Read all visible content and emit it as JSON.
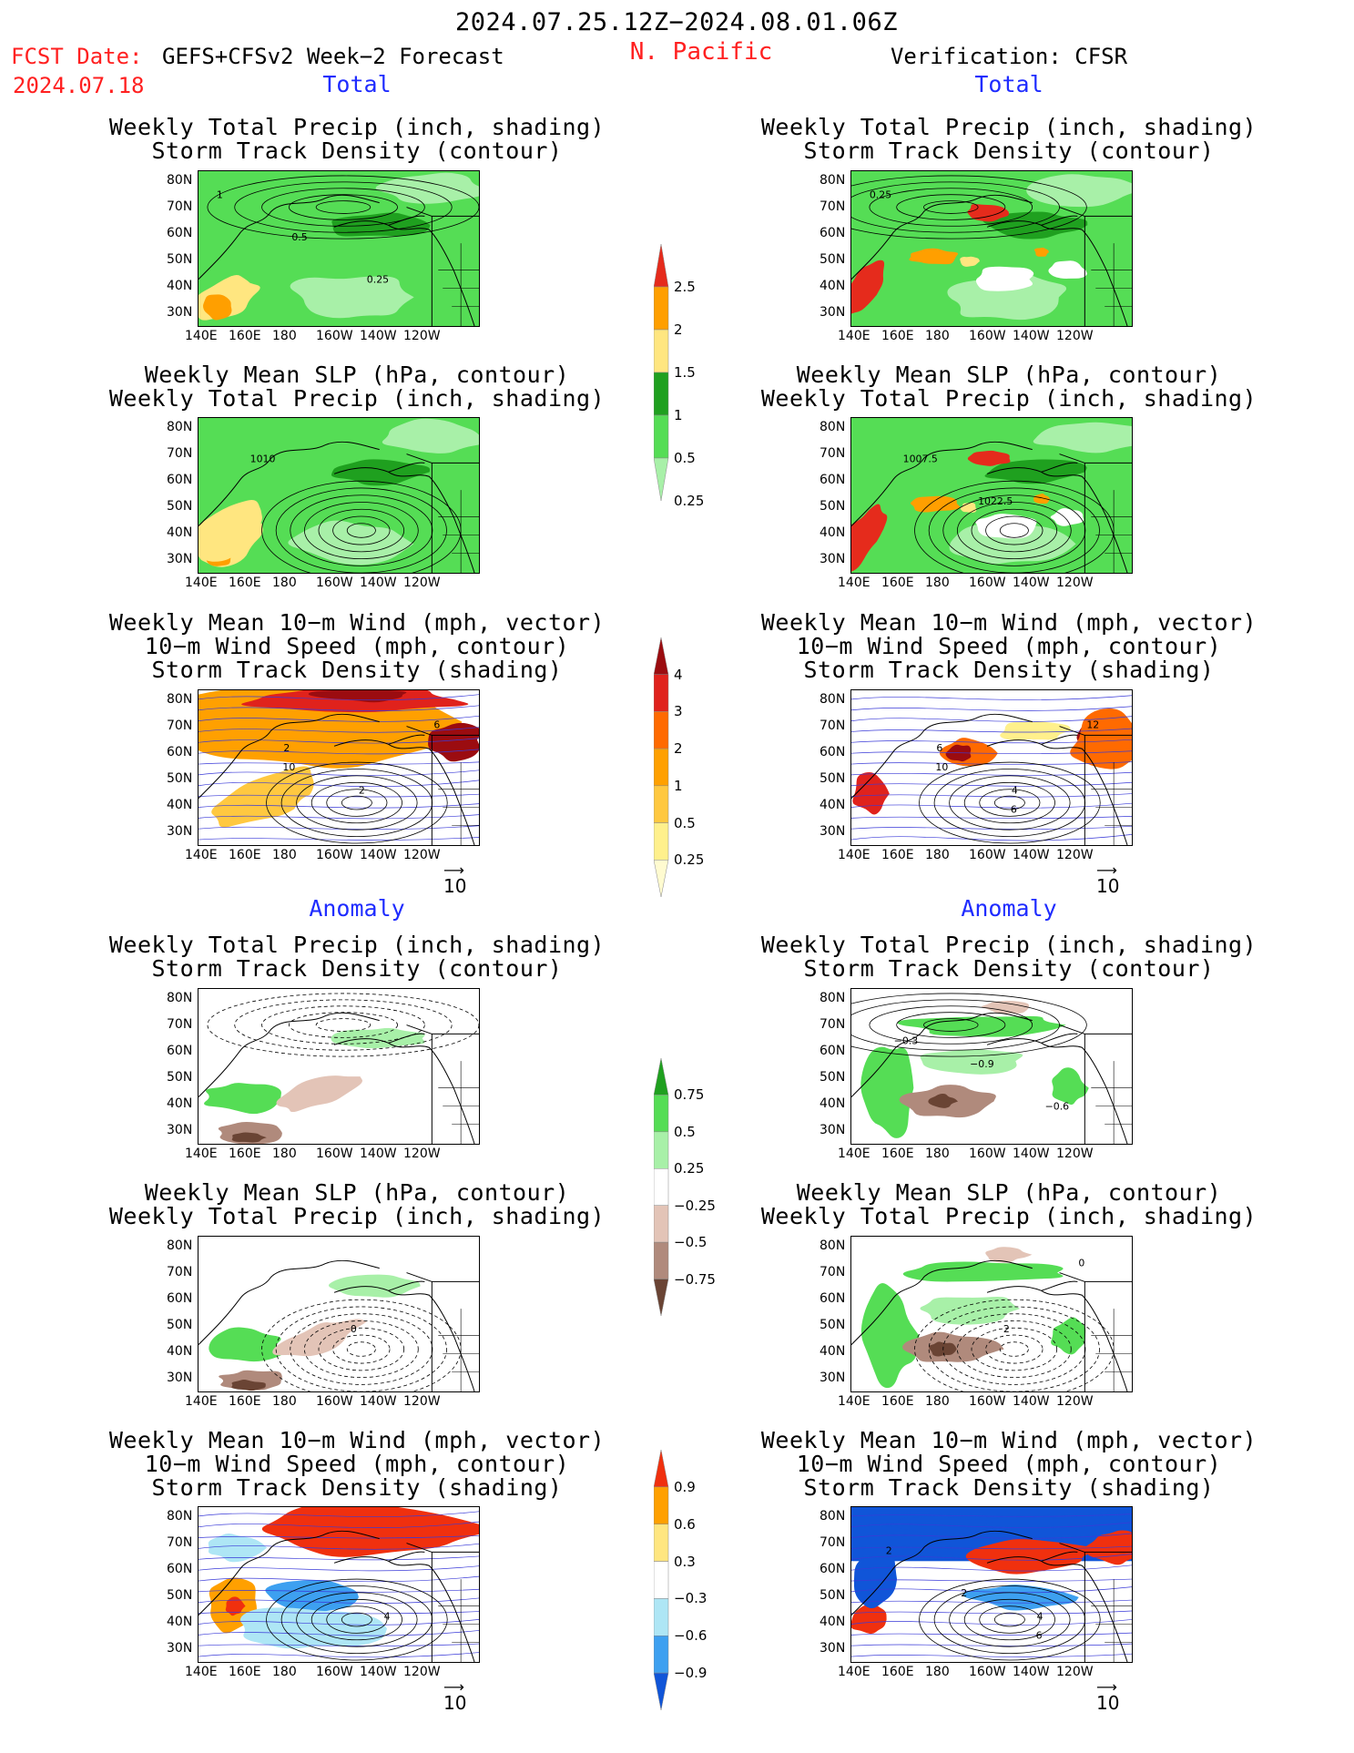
{
  "header": {
    "period": "2024.07.25.12Z−2024.08.01.06Z",
    "fcst_label": "FCST Date:",
    "model": "GEFS+CFSv2 Week−2 Forecast",
    "fcst_date": "2024.07.18",
    "region": "N. Pacific",
    "verification": "Verification: CFSR"
  },
  "sections": {
    "total": "Total",
    "anomaly": "Anomaly"
  },
  "panel_titles": {
    "precip_storm": [
      "Weekly Total Precip (inch, shading)",
      "Storm Track Density (contour)"
    ],
    "slp_precip": [
      "Weekly Mean SLP (hPa, contour)",
      "Weekly Total Precip (inch, shading)"
    ],
    "wind_storm": [
      "Weekly Mean 10−m Wind (mph, vector)",
      "10−m Wind Speed (mph, contour)",
      "Storm Track Density (shading)"
    ]
  },
  "axes": {
    "lat_ticks": [
      "80N",
      "70N",
      "60N",
      "50N",
      "40N",
      "30N"
    ],
    "lon_ticks": [
      "140E",
      "160E",
      "180",
      "160W",
      "140W",
      "120W"
    ]
  },
  "reference_vector": "10",
  "contour_labels": {
    "fcst_precip_storm": [
      "1",
      "0.5",
      "0.25"
    ],
    "verif_precip_storm": [
      "0.25"
    ],
    "fcst_slp": [
      "1010"
    ],
    "verif_slp": [
      "1007.5",
      "1022.5"
    ],
    "fcst_wind": [
      "2",
      "2",
      "6",
      "10"
    ],
    "verif_wind": [
      "6",
      "4",
      "12",
      "10",
      "6"
    ],
    "verif_precip_anom": [
      "−0.9",
      "−0.6",
      "−0.3"
    ],
    "fcst_slp_anom": [
      "0"
    ],
    "verif_slp_anom": [
      "2",
      "0"
    ],
    "fcst_wind_anom": [
      "4"
    ],
    "verif_wind_anom": [
      "4",
      "2",
      "2",
      "6"
    ]
  },
  "colorbars": {
    "precip_total": {
      "labels": [
        "2.5",
        "2",
        "1.5",
        "1",
        "0.5",
        "0.25"
      ],
      "colors": [
        "#e52b1c",
        "#ff9f00",
        "#ffe680",
        "#1fa01f",
        "#55dd55",
        "#a8f0a8"
      ]
    },
    "storm_total": {
      "labels": [
        "4",
        "3",
        "2",
        "1",
        "0.5",
        "0.25"
      ],
      "colors": [
        "#9b0c10",
        "#e0221c",
        "#ff6a00",
        "#ffa000",
        "#ffc840",
        "#fff08c",
        "#fffbd0"
      ]
    },
    "precip_anom": {
      "labels": [
        "0.75",
        "0.5",
        "0.25",
        "−0.25",
        "−0.5",
        "−0.75"
      ],
      "colors": [
        "#1fa01f",
        "#55dd55",
        "#a8f0a8",
        "#ffffff",
        "#e3c4b7",
        "#b08a7c",
        "#6a4434"
      ]
    },
    "storm_anom": {
      "labels": [
        "0.9",
        "0.6",
        "0.3",
        "−0.3",
        "−0.6",
        "−0.9"
      ],
      "colors": [
        "#f0300e",
        "#ffa000",
        "#ffe680",
        "#ffffff",
        "#aee6f5",
        "#3da0f0",
        "#1055d8"
      ]
    }
  },
  "chart_data": [
    {
      "type": "heatmap",
      "panel": "forecast-total-precip-storm",
      "title": [
        "Weekly Total Precip (inch, shading)",
        "Storm Track Density (contour)"
      ],
      "contour_labels": [
        "1",
        "0.5",
        "0.25"
      ]
    },
    {
      "type": "heatmap",
      "panel": "forecast-total-slp-precip",
      "title": [
        "Weekly Mean SLP (hPa, contour)",
        "Weekly Total Precip (inch, shading)"
      ],
      "contour_labels": [
        "1010"
      ]
    },
    {
      "type": "heatmap",
      "panel": "forecast-total-wind-storm",
      "title": [
        "Weekly Mean 10−m Wind (mph, vector)",
        "10−m Wind Speed (mph, contour)",
        "Storm Track Density (shading)"
      ],
      "contour_labels": [
        "2",
        "2",
        "6",
        "10"
      ]
    },
    {
      "type": "heatmap",
      "panel": "verification-total-precip-storm",
      "contour_labels": [
        "0.25"
      ]
    },
    {
      "type": "heatmap",
      "panel": "verification-total-slp-precip",
      "contour_labels": [
        "1007.5",
        "1022.5"
      ]
    },
    {
      "type": "heatmap",
      "panel": "verification-total-wind-storm",
      "contour_labels": [
        "6",
        "4",
        "12",
        "10",
        "6"
      ]
    },
    {
      "type": "heatmap",
      "panel": "forecast-anomaly-precip-storm"
    },
    {
      "type": "heatmap",
      "panel": "forecast-anomaly-slp-precip",
      "contour_labels": [
        "0"
      ]
    },
    {
      "type": "heatmap",
      "panel": "forecast-anomaly-wind-storm",
      "contour_labels": [
        "4"
      ]
    },
    {
      "type": "heatmap",
      "panel": "verification-anomaly-precip-storm",
      "contour_labels": [
        "−0.9",
        "−0.6",
        "−0.3"
      ]
    },
    {
      "type": "heatmap",
      "panel": "verification-anomaly-slp-precip",
      "contour_labels": [
        "2",
        "0"
      ]
    },
    {
      "type": "heatmap",
      "panel": "verification-anomaly-wind-storm",
      "contour_labels": [
        "4",
        "2",
        "2",
        "6"
      ]
    }
  ]
}
